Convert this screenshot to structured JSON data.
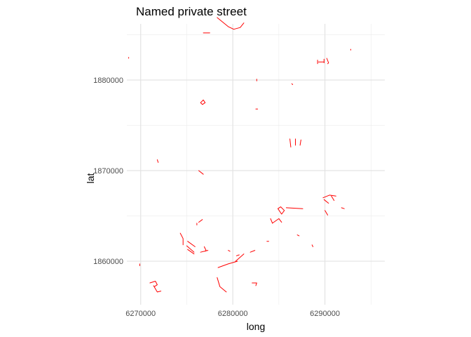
{
  "chart_data": {
    "type": "line",
    "title": "Named private street",
    "xlabel": "long",
    "ylabel": "lat",
    "xlim": [
      6268500,
      6296500
    ],
    "ylim": [
      1855200,
      1886200
    ],
    "x_major_ticks": [
      6270000,
      6280000,
      6290000
    ],
    "x_minor_ticks": [
      6275000,
      6285000,
      6295000
    ],
    "y_major_ticks": [
      1860000,
      1870000,
      1880000
    ],
    "y_minor_ticks": [
      1865000,
      1875000,
      1885000
    ],
    "x_tick_labels": [
      "6270000",
      "6280000",
      "6290000"
    ],
    "y_tick_labels": [
      "1860000",
      "1870000",
      "1880000"
    ],
    "grid": true,
    "legend": "none",
    "series_color": "#ff0000",
    "segments": [
      [
        [
          6278300,
          1886900
        ],
        [
          6279500,
          1885900
        ],
        [
          6280100,
          1885600
        ],
        [
          6280800,
          1885800
        ],
        [
          6281200,
          1886300
        ]
      ],
      [
        [
          6276800,
          1885200
        ],
        [
          6277500,
          1885200
        ]
      ],
      [
        [
          6289200,
          1882200
        ],
        [
          6289200,
          1881800
        ]
      ],
      [
        [
          6289900,
          1882300
        ],
        [
          6289900,
          1881900
        ]
      ],
      [
        [
          6290200,
          1882400
        ],
        [
          6290400,
          1881900
        ],
        [
          6290300,
          1881800
        ]
      ],
      [
        [
          6289300,
          1882000
        ],
        [
          6289900,
          1882000
        ]
      ],
      [
        [
          6292800,
          1883400
        ],
        [
          6292800,
          1883300
        ]
      ],
      [
        [
          6268700,
          1882500
        ],
        [
          6268700,
          1882400
        ]
      ],
      [
        [
          6282600,
          1880100
        ],
        [
          6282600,
          1879900
        ]
      ],
      [
        [
          6286400,
          1879600
        ],
        [
          6286500,
          1879500
        ]
      ],
      [
        [
          6276500,
          1877500
        ],
        [
          6276800,
          1877800
        ],
        [
          6277000,
          1877500
        ],
        [
          6276700,
          1877300
        ],
        [
          6276500,
          1877500
        ]
      ],
      [
        [
          6282500,
          1876800
        ],
        [
          6282700,
          1876800
        ]
      ],
      [
        [
          6286200,
          1873500
        ],
        [
          6286300,
          1872600
        ]
      ],
      [
        [
          6286800,
          1873500
        ],
        [
          6286800,
          1872800
        ]
      ],
      [
        [
          6287400,
          1873400
        ],
        [
          6287300,
          1872800
        ]
      ],
      [
        [
          6271800,
          1871200
        ],
        [
          6271900,
          1870900
        ]
      ],
      [
        [
          6276300,
          1870000
        ],
        [
          6276800,
          1869600
        ]
      ],
      [
        [
          6284900,
          1865800
        ],
        [
          6285200,
          1866000
        ],
        [
          6285600,
          1865600
        ],
        [
          6285300,
          1865200
        ],
        [
          6284900,
          1865800
        ]
      ],
      [
        [
          6285800,
          1865900
        ],
        [
          6287600,
          1865800
        ]
      ],
      [
        [
          6284100,
          1864700
        ],
        [
          6284300,
          1864200
        ]
      ],
      [
        [
          6284300,
          1864200
        ],
        [
          6285000,
          1864700
        ],
        [
          6285300,
          1864300
        ]
      ],
      [
        [
          6289800,
          1867000
        ],
        [
          6290500,
          1867300
        ],
        [
          6291200,
          1867200
        ]
      ],
      [
        [
          6289900,
          1866800
        ],
        [
          6290400,
          1866400
        ]
      ],
      [
        [
          6290000,
          1865600
        ],
        [
          6290300,
          1865100
        ]
      ],
      [
        [
          6290700,
          1867200
        ],
        [
          6291000,
          1866700
        ]
      ],
      [
        [
          6291800,
          1865900
        ],
        [
          6292100,
          1865800
        ]
      ],
      [
        [
          6276300,
          1864300
        ],
        [
          6276700,
          1864600
        ]
      ],
      [
        [
          6276100,
          1864200
        ],
        [
          6276100,
          1864000
        ]
      ],
      [
        [
          6274300,
          1863100
        ],
        [
          6274600,
          1862500
        ],
        [
          6274600,
          1861800
        ]
      ],
      [
        [
          6275100,
          1862200
        ],
        [
          6275900,
          1861600
        ]
      ],
      [
        [
          6275000,
          1861700
        ],
        [
          6275800,
          1861000
        ]
      ],
      [
        [
          6275100,
          1861300
        ],
        [
          6275800,
          1860800
        ]
      ],
      [
        [
          6276900,
          1861600
        ],
        [
          6277100,
          1861200
        ],
        [
          6277000,
          1861100
        ]
      ],
      [
        [
          6276500,
          1861000
        ],
        [
          6277300,
          1861200
        ]
      ],
      [
        [
          6283700,
          1862200
        ],
        [
          6283900,
          1862200
        ]
      ],
      [
        [
          6288600,
          1861800
        ],
        [
          6288700,
          1861600
        ]
      ],
      [
        [
          6287000,
          1862900
        ],
        [
          6287200,
          1862800
        ]
      ],
      [
        [
          6279500,
          1861200
        ],
        [
          6279700,
          1861100
        ]
      ],
      [
        [
          6281900,
          1861000
        ],
        [
          6282400,
          1861200
        ]
      ],
      [
        [
          6280400,
          1860600
        ],
        [
          6280700,
          1860700
        ]
      ],
      [
        [
          6280300,
          1860000
        ],
        [
          6281200,
          1860800
        ]
      ],
      [
        [
          6278400,
          1859300
        ],
        [
          6279500,
          1859700
        ],
        [
          6280500,
          1860000
        ]
      ],
      [
        [
          6269900,
          1859700
        ],
        [
          6269900,
          1859500
        ]
      ],
      [
        [
          6271000,
          1857600
        ],
        [
          6271600,
          1857800
        ],
        [
          6271800,
          1857400
        ],
        [
          6271500,
          1857200
        ]
      ],
      [
        [
          6271400,
          1857300
        ],
        [
          6271800,
          1856600
        ],
        [
          6272200,
          1856700
        ]
      ],
      [
        [
          6278300,
          1858200
        ],
        [
          6278600,
          1857200
        ],
        [
          6279300,
          1856600
        ]
      ],
      [
        [
          6282100,
          1857600
        ],
        [
          6282600,
          1857600
        ],
        [
          6282500,
          1857300
        ]
      ]
    ]
  }
}
